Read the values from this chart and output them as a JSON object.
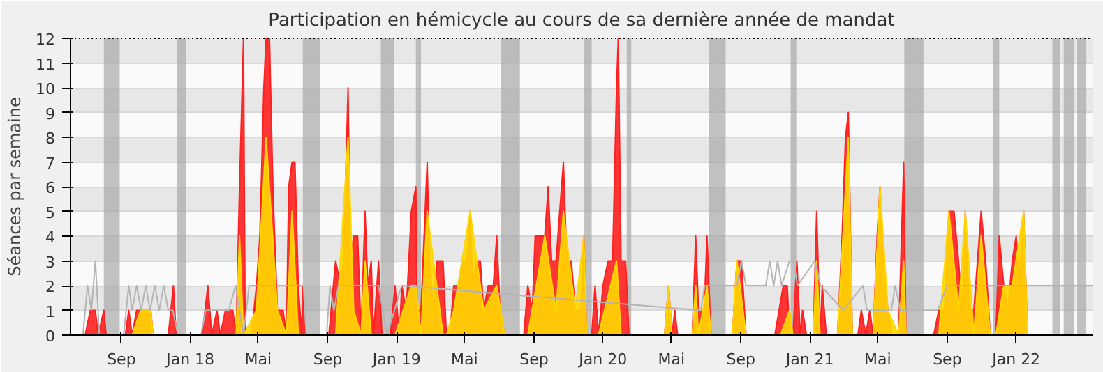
{
  "chart_data": {
    "type": "area",
    "title": "Participation en hémicycle au cours de sa dernière année de mandat",
    "ylabel": "Séances par semaine",
    "xlim": [
      "2017-06-03",
      "2022-05-16"
    ],
    "ylim": [
      0,
      12
    ],
    "yticks": [
      0,
      1,
      2,
      3,
      4,
      5,
      6,
      7,
      8,
      9,
      10,
      11,
      12
    ],
    "xticks": [
      {
        "value": "2017-09-01",
        "label": "Sep"
      },
      {
        "value": "2018-01-01",
        "label": "Jan 18"
      },
      {
        "value": "2018-05-01",
        "label": "Mai"
      },
      {
        "value": "2018-09-01",
        "label": "Sep"
      },
      {
        "value": "2019-01-01",
        "label": "Jan 19"
      },
      {
        "value": "2019-05-01",
        "label": "Mai"
      },
      {
        "value": "2019-09-01",
        "label": "Sep"
      },
      {
        "value": "2020-01-01",
        "label": "Jan 20"
      },
      {
        "value": "2020-05-01",
        "label": "Mai"
      },
      {
        "value": "2020-09-01",
        "label": "Sep"
      },
      {
        "value": "2021-01-01",
        "label": "Jan 21"
      },
      {
        "value": "2021-05-01",
        "label": "Mai"
      },
      {
        "value": "2021-09-01",
        "label": "Sep"
      },
      {
        "value": "2022-01-01",
        "label": "Jan 22"
      }
    ],
    "grid": "y",
    "series": [
      {
        "color": "#ff2020",
        "x": [
          "2017-06-03",
          "2017-06-29",
          "2017-07-08",
          "2017-07-17",
          "2017-07-22",
          "2017-08-01",
          "2017-08-05",
          "2017-09-08",
          "2017-09-14",
          "2017-09-20",
          "2017-09-28",
          "2017-10-23",
          "2017-10-27",
          "2017-11-23",
          "2017-12-02",
          "2017-12-07",
          "2018-01-22",
          "2018-02-01",
          "2018-02-08",
          "2018-02-17",
          "2018-02-23",
          "2018-03-04",
          "2018-03-17",
          "2018-03-23",
          "2018-03-29",
          "2018-04-05",
          "2018-04-08",
          "2018-04-19",
          "2018-04-28",
          "2018-05-04",
          "2018-05-11",
          "2018-05-15",
          "2018-05-21",
          "2018-05-27",
          "2018-06-04",
          "2018-06-14",
          "2018-06-20",
          "2018-06-24",
          "2018-06-30",
          "2018-07-05",
          "2018-07-11",
          "2018-07-17",
          "2018-07-19",
          "2018-07-23",
          "2018-09-03",
          "2018-09-15",
          "2018-09-24",
          "2018-09-29",
          "2018-10-07",
          "2018-10-11",
          "2018-10-17",
          "2018-10-24",
          "2018-10-30",
          "2018-11-06",
          "2018-11-11",
          "2018-11-17",
          "2018-11-21",
          "2018-11-30",
          "2018-12-06",
          "2018-12-21",
          "2018-12-29",
          "2019-01-06",
          "2019-01-10",
          "2019-01-18",
          "2019-01-27",
          "2019-02-04",
          "2019-02-06",
          "2019-02-13",
          "2019-02-24",
          "2019-02-28",
          "2019-03-07",
          "2019-03-13",
          "2019-03-24",
          "2019-03-30",
          "2019-04-05",
          "2019-04-12",
          "2019-04-20",
          "2019-04-27",
          "2019-05-05",
          "2019-05-11",
          "2019-05-15",
          "2019-05-22",
          "2019-05-29",
          "2019-06-04",
          "2019-06-12",
          "2019-06-21",
          "2019-06-27",
          "2019-07-03",
          "2019-07-11",
          "2019-08-14",
          "2019-08-21",
          "2019-08-29",
          "2019-09-03",
          "2019-09-20",
          "2019-09-26",
          "2019-10-02",
          "2019-10-10",
          "2019-10-23",
          "2019-10-29",
          "2019-11-06",
          "2019-11-13",
          "2019-11-23",
          "2019-11-28",
          "2019-12-03",
          "2019-12-12",
          "2019-12-18",
          "2019-12-24",
          "2020-01-01",
          "2020-01-10",
          "2020-01-18",
          "2020-01-25",
          "2020-01-28",
          "2020-02-02",
          "2020-02-10",
          "2020-02-16",
          "2020-04-19",
          "2020-04-26",
          "2020-05-02",
          "2020-05-07",
          "2020-05-12",
          "2020-06-07",
          "2020-06-13",
          "2020-06-18",
          "2020-06-28",
          "2020-07-03",
          "2020-07-10",
          "2020-08-17",
          "2020-08-25",
          "2020-09-02",
          "2020-09-10",
          "2020-10-31",
          "2020-11-15",
          "2020-11-22",
          "2020-11-26",
          "2020-12-02",
          "2020-12-09",
          "2020-12-15",
          "2020-12-19",
          "2020-12-26",
          "2021-01-07",
          "2021-01-13",
          "2021-01-19",
          "2021-01-23",
          "2021-01-30",
          "2021-02-19",
          "2021-02-27",
          "2021-03-05",
          "2021-03-10",
          "2021-03-17",
          "2021-03-27",
          "2021-04-02",
          "2021-04-10",
          "2021-04-17",
          "2021-04-23",
          "2021-04-30",
          "2021-05-05",
          "2021-05-11",
          "2021-05-19",
          "2021-05-26",
          "2021-06-07",
          "2021-06-16",
          "2021-06-20",
          "2021-08-08",
          "2021-08-17",
          "2021-08-27",
          "2021-09-04",
          "2021-09-13",
          "2021-09-21",
          "2021-09-28",
          "2021-10-03",
          "2021-10-10",
          "2021-10-18",
          "2021-10-31",
          "2021-11-08",
          "2021-11-16",
          "2021-11-26",
          "2021-12-02",
          "2021-12-10",
          "2021-12-17",
          "2021-12-25",
          "2022-01-01",
          "2022-01-06",
          "2022-01-14",
          "2022-01-21",
          "2022-05-16"
        ],
        "values": [
          0,
          0,
          1,
          1,
          0,
          1,
          0,
          0,
          1,
          0,
          1,
          1,
          0,
          0,
          2,
          0,
          0,
          2,
          0,
          1,
          0,
          1,
          1,
          0,
          6,
          12,
          0,
          0,
          2,
          4,
          10,
          12,
          12,
          6,
          1,
          1,
          0,
          6,
          7,
          7,
          2,
          0,
          2,
          0,
          0,
          3,
          2,
          3,
          10,
          3,
          4,
          4,
          0,
          5,
          2,
          3,
          0,
          3,
          0,
          0,
          2,
          0,
          2,
          1,
          5,
          6,
          1,
          1,
          7,
          3,
          1,
          3,
          3,
          0,
          0,
          2,
          2,
          3,
          3,
          5,
          2,
          3,
          3,
          1,
          2,
          2,
          4,
          1,
          0,
          0,
          2,
          1,
          4,
          4,
          6,
          3,
          3,
          7,
          3,
          3,
          1,
          1,
          4,
          0,
          0,
          2,
          0,
          2,
          3,
          3,
          10,
          12,
          3,
          3,
          0,
          0,
          2,
          0,
          1,
          0,
          0,
          4,
          1,
          1,
          4,
          0,
          0,
          3,
          3,
          0,
          0,
          2,
          2,
          0,
          0,
          3,
          0,
          1,
          0,
          0,
          5,
          0,
          2,
          0,
          0,
          4,
          8,
          9,
          0,
          0,
          1,
          0,
          1,
          0,
          4,
          6,
          3,
          1,
          0,
          0,
          7,
          0,
          0,
          1,
          1,
          5,
          5,
          3,
          1,
          5,
          1,
          1,
          5,
          3,
          0,
          0,
          4,
          2,
          1,
          3,
          4,
          2,
          5,
          0,
          0
        ]
      },
      {
        "color": "#ffd700",
        "x": [
          "2017-06-03",
          "2017-09-20",
          "2017-10-05",
          "2017-10-23",
          "2017-10-27",
          "2018-03-23",
          "2018-03-29",
          "2018-04-05",
          "2018-04-28",
          "2018-05-15",
          "2018-06-04",
          "2018-06-20",
          "2018-06-30",
          "2018-07-11",
          "2018-09-15",
          "2018-10-07",
          "2018-10-17",
          "2018-10-30",
          "2018-11-06",
          "2018-11-17",
          "2018-12-29",
          "2019-01-27",
          "2019-02-04",
          "2019-02-13",
          "2019-02-24",
          "2019-03-24",
          "2019-03-30",
          "2019-04-12",
          "2019-05-11",
          "2019-06-04",
          "2019-06-27",
          "2019-07-11",
          "2019-08-21",
          "2019-09-20",
          "2019-10-10",
          "2019-10-23",
          "2019-11-13",
          "2019-11-28",
          "2019-12-03",
          "2019-12-24",
          "2020-01-25",
          "2020-02-02",
          "2020-04-19",
          "2020-04-26",
          "2020-05-02",
          "2020-06-07",
          "2020-06-13",
          "2020-06-18",
          "2020-07-03",
          "2020-07-10",
          "2020-08-17",
          "2020-08-25",
          "2020-09-10",
          "2020-11-10",
          "2020-11-26",
          "2020-12-02",
          "2021-01-07",
          "2021-01-13",
          "2021-01-19",
          "2021-02-19",
          "2021-03-10",
          "2021-03-17",
          "2021-04-23",
          "2021-05-05",
          "2021-05-19",
          "2021-06-07",
          "2021-06-16",
          "2021-06-20",
          "2021-08-17",
          "2021-09-04",
          "2021-09-21",
          "2021-10-03",
          "2021-10-18",
          "2021-10-31",
          "2021-11-16",
          "2021-11-26",
          "2021-12-10",
          "2021-12-25",
          "2022-01-14",
          "2022-01-21",
          "2022-05-16"
        ],
        "values": [
          0,
          0,
          1,
          1,
          0,
          0,
          4,
          0,
          1,
          8,
          1,
          0,
          5,
          0,
          0,
          8,
          1,
          0,
          3,
          0,
          0,
          2,
          2,
          0,
          5,
          0,
          0,
          1,
          5,
          1,
          2,
          0,
          0,
          4,
          1,
          5,
          1,
          4,
          0,
          0,
          3,
          0,
          0,
          2,
          0,
          0,
          2,
          0,
          2,
          0,
          0,
          3,
          0,
          0,
          1,
          0,
          0,
          3,
          0,
          0,
          8,
          0,
          0,
          6,
          1,
          0,
          3,
          0,
          0,
          5,
          1,
          5,
          0,
          4,
          0,
          0,
          2,
          2,
          5,
          0,
          0
        ]
      },
      {
        "type": "line",
        "color": "#b4b4b4",
        "x": [
          "2017-06-03",
          "2017-06-25",
          "2017-07-03",
          "2017-07-10",
          "2017-07-17",
          "2017-07-24",
          "2017-09-05",
          "2017-09-14",
          "2017-09-20",
          "2017-09-28",
          "2017-10-06",
          "2017-10-14",
          "2017-10-22",
          "2017-10-30",
          "2017-11-07",
          "2017-11-15",
          "2017-11-23",
          "2017-12-01",
          "2017-12-10",
          "2018-01-20",
          "2018-01-28",
          "2018-03-10",
          "2018-03-22",
          "2018-04-05",
          "2018-04-15",
          "2018-07-20",
          "2018-07-25",
          "2018-08-30",
          "2018-09-05",
          "2018-09-12",
          "2018-09-20",
          "2018-11-30",
          "2018-12-15",
          "2019-01-10",
          "2020-06-22",
          "2020-06-29",
          "2020-08-25",
          "2020-09-02",
          "2020-09-10",
          "2020-10-15",
          "2020-10-22",
          "2020-10-29",
          "2020-11-05",
          "2020-11-12",
          "2020-11-26",
          "2020-12-03",
          "2020-12-10",
          "2021-01-10",
          "2021-01-20",
          "2021-03-01",
          "2021-04-05",
          "2021-04-12",
          "2021-05-25",
          "2021-06-01",
          "2021-06-10",
          "2021-08-15",
          "2021-09-01",
          "2022-05-16"
        ],
        "values": [
          0,
          0,
          2,
          1,
          3,
          0,
          0,
          2,
          1,
          2,
          1,
          2,
          1,
          2,
          1,
          2,
          1,
          1,
          0,
          0,
          1,
          1,
          2,
          0,
          2,
          2,
          0,
          0,
          2,
          1,
          2,
          2,
          0,
          2,
          1,
          2,
          2,
          3,
          2,
          2,
          3,
          2,
          3,
          2,
          3,
          3,
          2,
          3,
          2,
          1,
          2,
          1,
          1,
          2,
          1,
          1,
          2,
          2
        ]
      }
    ],
    "bands": [
      {
        "axis": "x",
        "from": "2017-08-01",
        "to": "2017-08-29",
        "color": "#a8a8a8"
      },
      {
        "axis": "x",
        "from": "2017-12-09",
        "to": "2017-12-25",
        "color": "#a8a8a8"
      },
      {
        "axis": "x",
        "from": "2018-07-19",
        "to": "2018-08-19",
        "color": "#a8a8a8"
      },
      {
        "axis": "x",
        "from": "2018-12-04",
        "to": "2018-12-27",
        "color": "#a8a8a8"
      },
      {
        "axis": "x",
        "from": "2019-02-04",
        "to": "2019-02-13",
        "color": "#a8a8a8"
      },
      {
        "axis": "x",
        "from": "2019-07-05",
        "to": "2019-08-07",
        "color": "#a8a8a8"
      },
      {
        "axis": "x",
        "from": "2019-11-29",
        "to": "2019-12-12",
        "color": "#a8a8a8"
      },
      {
        "axis": "x",
        "from": "2020-02-12",
        "to": "2020-02-20",
        "color": "#a8a8a8"
      },
      {
        "axis": "x",
        "from": "2020-07-07",
        "to": "2020-08-05",
        "color": "#a8a8a8"
      },
      {
        "axis": "x",
        "from": "2020-11-28",
        "to": "2020-12-08",
        "color": "#a8a8a8"
      },
      {
        "axis": "x",
        "from": "2021-06-17",
        "to": "2021-07-21",
        "color": "#a8a8a8"
      },
      {
        "axis": "x",
        "from": "2021-11-21",
        "to": "2021-12-02",
        "color": "#a8a8a8"
      },
      {
        "axis": "x",
        "from": "2022-03-06",
        "to": "2022-03-20",
        "color": "#a8a8a8"
      },
      {
        "axis": "x",
        "from": "2022-03-26",
        "to": "2022-04-13",
        "color": "#a8a8a8"
      },
      {
        "axis": "x",
        "from": "2022-04-19",
        "to": "2022-05-05",
        "color": "#a8a8a8"
      }
    ]
  }
}
